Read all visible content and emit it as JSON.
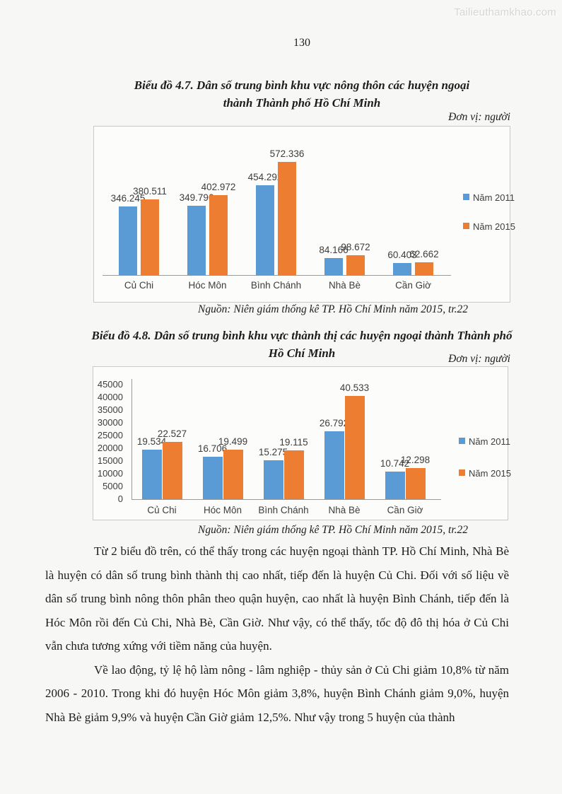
{
  "page": {
    "watermark": "Tailieuthamkhao.com",
    "page_number": "130"
  },
  "chart_data": [
    {
      "type": "bar",
      "title": "Biểu đồ 4.7. Dân số trung bình khu vực nông thôn các huyện ngoại thành Thành phố Hồ Chí Minh",
      "title_lines": [
        "Biểu đồ 4.7. Dân số trung bình khu vực nông thôn các huyện ngoại",
        "thành Thành phố Hồ Chí Minh"
      ],
      "unit": "Đơn vị: người",
      "source": "Nguồn: Niên giám thống kê TP. Hồ Chí Minh năm 2015, tr.22",
      "categories": [
        "Củ Chi",
        "Hóc Môn",
        "Bình Chánh",
        "Nhà Bè",
        "Cần Giờ"
      ],
      "series": [
        {
          "name": "Năm 2011",
          "color": "#5b9bd5",
          "values": [
            346245,
            349796,
            454292,
            84166,
            60403
          ],
          "labels": [
            "346.245",
            "349.796",
            "454.292",
            "84.166",
            "60.403"
          ]
        },
        {
          "name": "Năm 2015",
          "color": "#ed7d31",
          "values": [
            380511,
            402972,
            572336,
            98672,
            62662
          ],
          "labels": [
            "380.511",
            "402.972",
            "572.336",
            "98.672",
            "62.662"
          ]
        }
      ],
      "ylim": [
        0,
        600000
      ],
      "y_axis": {
        "visible": false,
        "ticks": [],
        "tick_labels": []
      },
      "grid": false,
      "legend_position": "right"
    },
    {
      "type": "bar",
      "title": "Biểu đồ 4.8. Dân số trung bình khu vực thành thị các huyện ngoại thành Thành phố Hồ Chí Minh",
      "title_lines": [
        "Biểu đồ 4.8. Dân số trung bình khu vực thành thị các huyện ngoại thành Thành phố",
        "Hồ Chí Minh"
      ],
      "unit": "Đơn vị: người",
      "source": "Nguồn: Niên giám thống kê TP. Hồ Chí Minh năm 2015, tr.22",
      "categories": [
        "Củ Chi",
        "Hóc Môn",
        "Bình Chánh",
        "Nhà Bè",
        "Cần Giờ"
      ],
      "series": [
        {
          "name": "Năm 2011",
          "color": "#5b9bd5",
          "values": [
            19534,
            16706,
            15275,
            26792,
            10742
          ],
          "labels": [
            "19.534",
            "16.706",
            "15.275",
            "26.792",
            "10.742"
          ]
        },
        {
          "name": "Năm 2015",
          "color": "#ed7d31",
          "values": [
            22527,
            19499,
            19115,
            40533,
            12298
          ],
          "labels": [
            "22.527",
            "19.499",
            "19.115",
            "40.533",
            "12.298"
          ]
        }
      ],
      "ylim": [
        0,
        45000
      ],
      "y_axis": {
        "visible": true,
        "ticks": [
          0,
          5000,
          10000,
          15000,
          20000,
          25000,
          30000,
          35000,
          40000,
          45000
        ],
        "tick_labels": [
          "0",
          "5000",
          "10000",
          "15000",
          "20000",
          "25000",
          "30000",
          "35000",
          "40000",
          "45000"
        ]
      },
      "grid": false,
      "legend_position": "right"
    }
  ],
  "body": {
    "paragraphs": [
      "Từ 2 biểu đồ trên, có thể thấy trong các huyện ngoại thành TP. Hồ Chí Minh, Nhà Bè là huyện có dân số trung bình thành thị cao nhất, tiếp đến là huyện Củ Chi. Đối với số liệu về dân số trung bình nông thôn phân theo quận huyện, cao nhất là huyện Bình Chánh, tiếp đến là Hóc Môn rồi đến Củ Chi, Nhà Bè, Cần Giờ. Như vậy, có thể thấy, tốc độ đô thị hóa ở Củ Chi vẫn chưa tương xứng với tiềm năng của huyện.",
      "Về lao động, tỷ lệ hộ làm nông - lâm nghiệp - thủy sản ở Củ Chi giảm 10,8% từ năm 2006 - 2010. Trong khi đó huyện Hóc Môn giảm 3,8%, huyện Bình Chánh giảm 9,0%, huyện Nhà Bè giảm 9,9% và huyện Cần Giờ giảm 12,5%. Như vậy trong 5 huyện của thành"
    ]
  },
  "colors": {
    "series_2011": "#5b9bd5",
    "series_2015": "#ed7d31",
    "chart_border": "#c9c9c6",
    "axis": "#9b9b9b"
  }
}
